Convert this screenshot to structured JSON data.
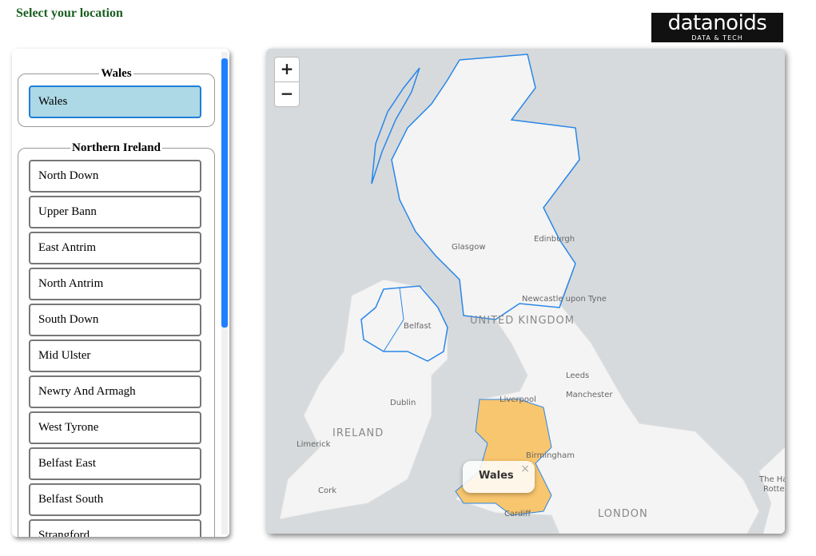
{
  "header": {
    "title": "Select your location",
    "logo": {
      "name": "datanoids",
      "tagline": "DATA & TECH"
    }
  },
  "location_list": {
    "groups": [
      {
        "legend": "Wales",
        "items": [
          "Wales"
        ]
      },
      {
        "legend": "Northern Ireland",
        "items": [
          "North Down",
          "Upper Bann",
          "East Antrim",
          "North Antrim",
          "South Down",
          "Mid Ulster",
          "Newry And Armagh",
          "West Tyrone",
          "Belfast East",
          "Belfast South",
          "Strangford"
        ]
      }
    ]
  },
  "map": {
    "zoom_in": "+",
    "zoom_out": "−",
    "labels": [
      "Edinburgh",
      "Glasgow",
      "Newcastle upon Tyne",
      "UNITED KINGDOM",
      "Belfast",
      "Leeds",
      "Manchester",
      "Liverpool",
      "Dublin",
      "IRELAND",
      "Limerick",
      "Birmingham",
      "Cork",
      "Cardiff",
      "LONDON",
      "The Hague",
      "Rotterdam"
    ],
    "popup": {
      "title": "Wales",
      "close": "×"
    }
  }
}
